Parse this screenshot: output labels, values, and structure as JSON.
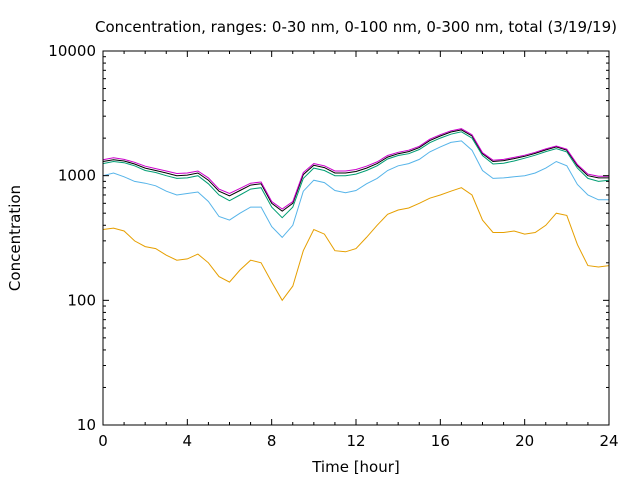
{
  "chart_data": {
    "type": "line",
    "title": "Concentration, ranges: 0-30 nm, 0-100 nm, 0-300 nm, total (3/19/19)",
    "xlabel": "Time [hour]",
    "ylabel": "Concentration",
    "x_scale": "linear",
    "y_scale": "log",
    "xlim": [
      0,
      24
    ],
    "ylim": [
      10,
      10000
    ],
    "x_ticks": [
      0,
      4,
      8,
      12,
      16,
      20,
      24
    ],
    "x_tick_labels": [
      "0",
      "4",
      "8",
      "12",
      "16",
      "20",
      "24"
    ],
    "y_ticks": [
      10,
      100,
      1000,
      10000
    ],
    "y_tick_labels": [
      "10",
      "100",
      "1000",
      "10000"
    ],
    "legend": false,
    "grid": false,
    "x": [
      0,
      0.5,
      1,
      1.5,
      2,
      2.5,
      3,
      3.5,
      4,
      4.5,
      5,
      5.5,
      6,
      6.5,
      7,
      7.5,
      8,
      8.5,
      9,
      9.5,
      10,
      10.5,
      11,
      11.5,
      12,
      12.5,
      13,
      13.5,
      14,
      14.5,
      15,
      15.5,
      16,
      16.5,
      17,
      17.5,
      18,
      18.5,
      19,
      19.5,
      20,
      20.5,
      21,
      21.5,
      22,
      22.5,
      23,
      23.5,
      24
    ],
    "series": [
      {
        "color": "#e69f00",
        "values": [
          370,
          380,
          360,
          300,
          270,
          260,
          230,
          210,
          215,
          235,
          200,
          155,
          140,
          175,
          210,
          200,
          140,
          100,
          130,
          250,
          370,
          340,
          250,
          245,
          260,
          320,
          400,
          490,
          530,
          550,
          600,
          660,
          700,
          750,
          800,
          700,
          440,
          350,
          350,
          360,
          340,
          350,
          400,
          500,
          480,
          280,
          190,
          185,
          190
        ]
      },
      {
        "color": "#56b4e9",
        "values": [
          1000,
          1050,
          980,
          900,
          870,
          830,
          750,
          700,
          720,
          740,
          620,
          470,
          440,
          500,
          560,
          560,
          390,
          320,
          400,
          750,
          920,
          880,
          760,
          730,
          760,
          860,
          950,
          1100,
          1200,
          1250,
          1350,
          1550,
          1700,
          1850,
          1900,
          1600,
          1100,
          950,
          960,
          980,
          1000,
          1050,
          1150,
          1300,
          1200,
          850,
          700,
          640,
          640
        ]
      },
      {
        "color": "#009e73",
        "values": [
          1250,
          1300,
          1270,
          1200,
          1100,
          1060,
          1000,
          950,
          960,
          1000,
          860,
          700,
          630,
          700,
          780,
          800,
          560,
          460,
          560,
          950,
          1150,
          1100,
          1000,
          1000,
          1030,
          1100,
          1200,
          1360,
          1450,
          1500,
          1620,
          1840,
          2000,
          2150,
          2250,
          2000,
          1450,
          1240,
          1260,
          1310,
          1380,
          1460,
          1560,
          1650,
          1550,
          1150,
          950,
          900,
          920
        ]
      },
      {
        "color": "#000000",
        "values": [
          1300,
          1340,
          1310,
          1240,
          1150,
          1100,
          1050,
          1000,
          1010,
          1050,
          920,
          750,
          690,
          760,
          840,
          860,
          600,
          520,
          600,
          1020,
          1210,
          1160,
          1050,
          1050,
          1080,
          1150,
          1250,
          1410,
          1500,
          1560,
          1680,
          1910,
          2080,
          2240,
          2330,
          2080,
          1500,
          1300,
          1320,
          1370,
          1430,
          1510,
          1610,
          1700,
          1600,
          1200,
          1000,
          960,
          960
        ]
      },
      {
        "color": "#cc00cc",
        "values": [
          1340,
          1390,
          1350,
          1280,
          1190,
          1140,
          1090,
          1040,
          1050,
          1090,
          960,
          780,
          720,
          790,
          870,
          890,
          620,
          540,
          620,
          1060,
          1250,
          1200,
          1090,
          1090,
          1120,
          1190,
          1290,
          1450,
          1540,
          1600,
          1720,
          1960,
          2130,
          2290,
          2380,
          2130,
          1530,
          1330,
          1350,
          1400,
          1460,
          1540,
          1640,
          1730,
          1630,
          1230,
          1030,
          990,
          990
        ]
      }
    ]
  }
}
